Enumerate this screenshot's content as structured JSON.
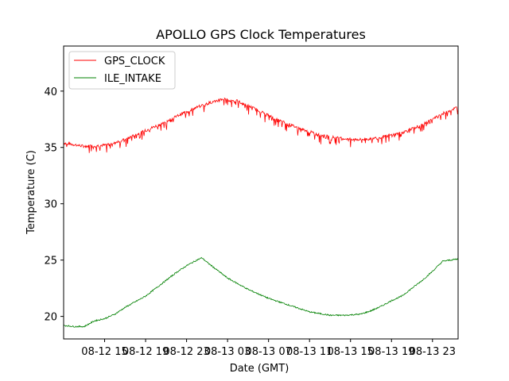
{
  "chart_data": {
    "type": "line",
    "title": "APOLLO GPS Clock Temperatures",
    "xlabel": "Date (GMT)",
    "ylabel": "Temperature (C)",
    "xlim_hours": [
      0,
      38.5
    ],
    "ylim": [
      18,
      44
    ],
    "yticks": [
      20,
      25,
      30,
      35,
      40
    ],
    "xticks": [
      {
        "hour": 4,
        "label": "08-12 15"
      },
      {
        "hour": 8,
        "label": "08-12 19"
      },
      {
        "hour": 12,
        "label": "08-12 23"
      },
      {
        "hour": 16,
        "label": "08-13 03"
      },
      {
        "hour": 20,
        "label": "08-13 07"
      },
      {
        "hour": 24,
        "label": "08-13 11"
      },
      {
        "hour": 28,
        "label": "08-13 15"
      },
      {
        "hour": 32,
        "label": "08-13 19"
      },
      {
        "hour": 36,
        "label": "08-13 23"
      }
    ],
    "legend_position": "top-left",
    "series": [
      {
        "name": "GPS_CLOCK",
        "color": "#ff0000",
        "x": [
          0,
          2,
          4,
          6,
          8,
          10,
          12,
          14,
          15.5,
          17,
          19,
          21,
          23,
          25,
          27,
          29,
          31,
          33,
          35,
          37,
          38.5
        ],
        "y": [
          35.4,
          35.1,
          35.2,
          35.7,
          36.5,
          37.3,
          38.2,
          38.9,
          39.3,
          39.1,
          38.3,
          37.4,
          36.7,
          36.1,
          35.8,
          35.7,
          35.9,
          36.3,
          37.0,
          38.0,
          38.6
        ]
      },
      {
        "name": "ILE_INTAKE",
        "color": "#008000",
        "x": [
          0,
          1,
          2,
          3,
          4,
          5,
          6,
          7,
          8,
          9,
          10,
          11,
          12,
          13,
          13.5,
          14,
          16,
          18,
          20,
          22,
          24,
          26,
          27.5,
          29,
          30,
          31,
          32,
          33,
          34,
          35,
          36,
          37,
          38.5
        ],
        "y": [
          19.2,
          19.1,
          19.1,
          19.6,
          19.8,
          20.2,
          20.8,
          21.3,
          21.8,
          22.5,
          23.2,
          23.9,
          24.5,
          25.0,
          25.2,
          24.8,
          23.4,
          22.4,
          21.6,
          21.0,
          20.4,
          20.1,
          20.1,
          20.2,
          20.5,
          20.9,
          21.4,
          21.8,
          22.5,
          23.2,
          24.0,
          24.9,
          25.1
        ]
      }
    ]
  }
}
